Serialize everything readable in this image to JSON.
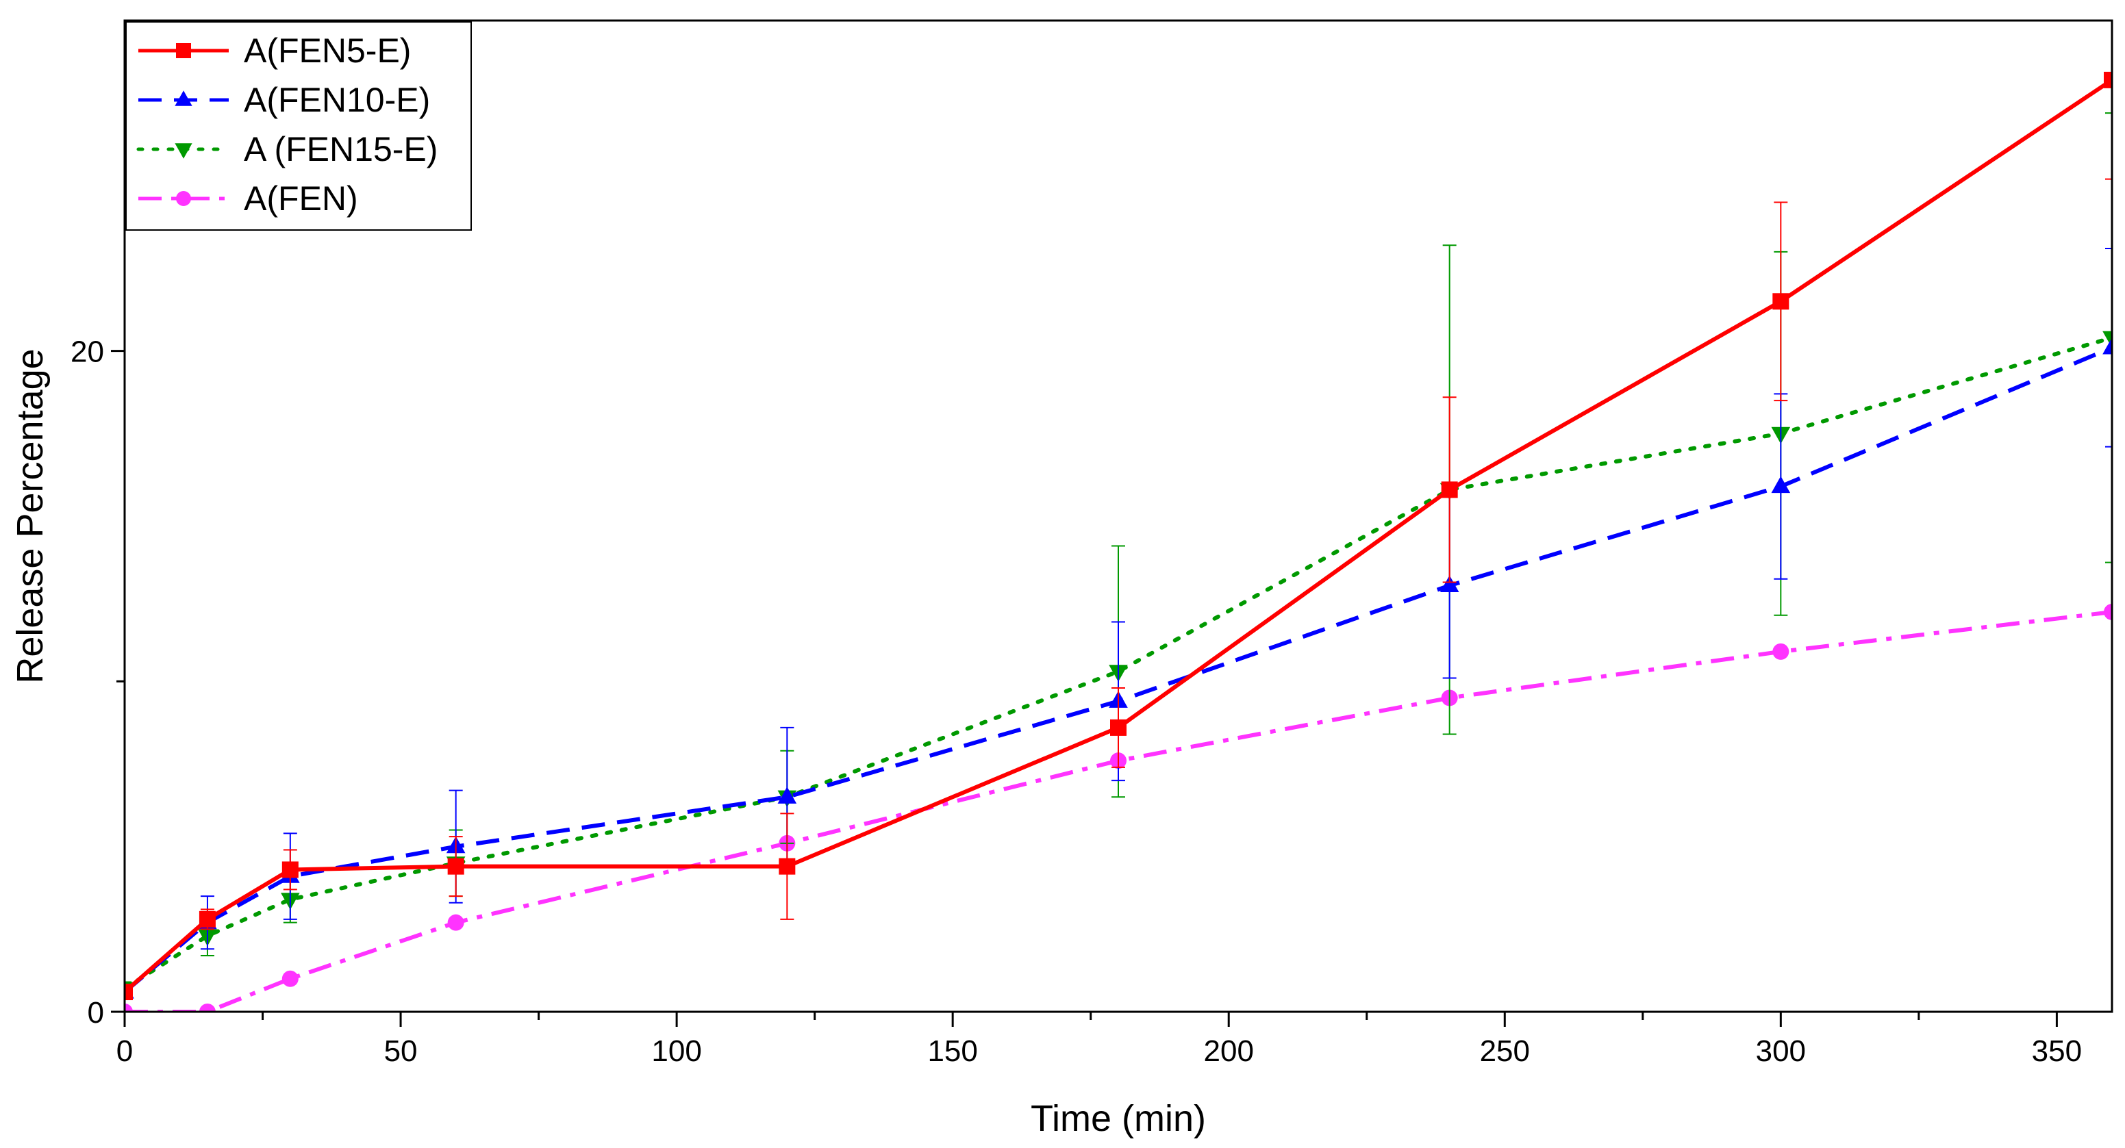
{
  "chart_data": {
    "type": "line",
    "title": "",
    "xlabel": "Time (min)",
    "ylabel": "Release Percentage",
    "xlim": [
      0,
      360
    ],
    "ylim": [
      0,
      30
    ],
    "xticks": [
      0,
      50,
      100,
      150,
      200,
      250,
      300,
      350
    ],
    "xtick_labels": [
      "0",
      "50",
      "100",
      "150",
      "200",
      "250",
      "300",
      "350"
    ],
    "yticks": [
      0,
      20
    ],
    "ytick_labels": [
      "0",
      "20"
    ],
    "grid": false,
    "legend_position": "top-left",
    "x": [
      0,
      15,
      30,
      60,
      120,
      180,
      240,
      300,
      360
    ],
    "series": [
      {
        "name": "A(FEN5-E)",
        "color": "#ff0000",
        "dash": "solid",
        "marker": "square",
        "values": [
          0.6,
          2.8,
          4.3,
          4.4,
          4.4,
          8.6,
          15.8,
          21.5,
          28.2
        ],
        "errors": [
          0.2,
          0.3,
          0.6,
          0.9,
          1.6,
          1.2,
          2.8,
          3.0,
          3.0
        ]
      },
      {
        "name": "A(FEN10-E)",
        "color": "#0000ff",
        "dash": "dashed",
        "marker": "triangle-up",
        "values": [
          0.6,
          2.7,
          4.1,
          5.0,
          6.5,
          9.4,
          12.9,
          15.9,
          20.1
        ],
        "errors": [
          0.2,
          0.8,
          1.3,
          1.7,
          2.1,
          2.4,
          2.8,
          2.8,
          3.0
        ]
      },
      {
        "name": "A (FEN15-E)",
        "color": "#009900",
        "dash": "dotted",
        "marker": "triangle-down",
        "values": [
          0.7,
          2.3,
          3.4,
          4.5,
          6.5,
          10.3,
          15.8,
          17.5,
          20.4
        ],
        "errors": [
          0.2,
          0.6,
          0.7,
          1.0,
          1.4,
          3.8,
          7.4,
          5.5,
          6.8
        ]
      },
      {
        "name": "A(FEN)",
        "color": "#ff33ff",
        "dash": "dashdot",
        "marker": "circle",
        "values": [
          0.0,
          0.0,
          1.0,
          2.7,
          5.1,
          7.6,
          9.5,
          10.9,
          12.1
        ],
        "errors": [
          0,
          0,
          0,
          0,
          0,
          0,
          0,
          0,
          0
        ]
      }
    ]
  }
}
